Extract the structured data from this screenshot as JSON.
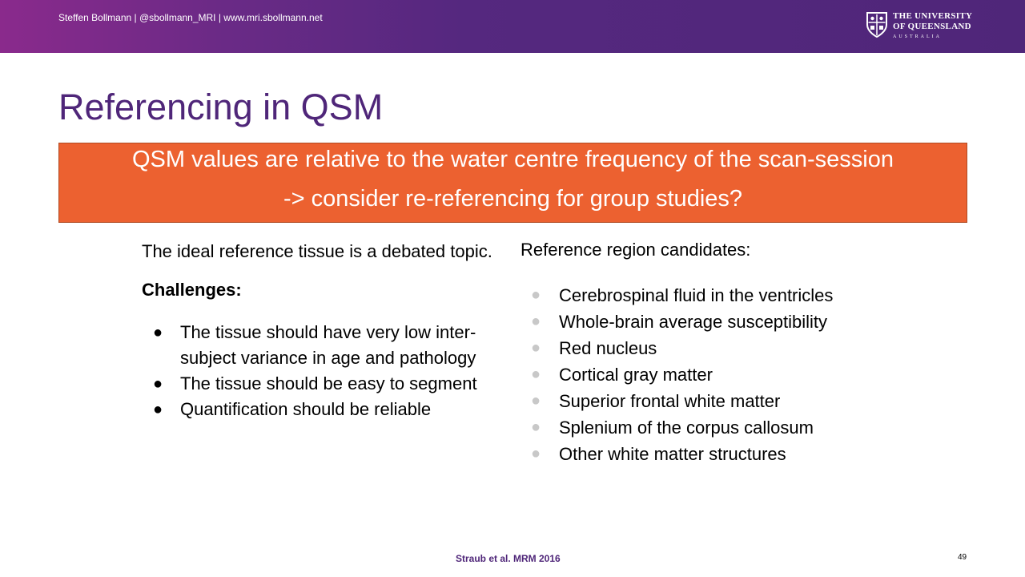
{
  "header": {
    "author": "Steffen Bollmann | @sbollmann_MRI  | www.mri.sbollmann.net",
    "logo": {
      "line1": "THE UNIVERSITY",
      "line2": "OF QUEENSLAND",
      "line3": "AUSTRALIA"
    }
  },
  "title": "Referencing in QSM",
  "banner": {
    "line1": "QSM values are relative to the water centre frequency of the scan-session",
    "line2": "-> consider re-referencing for group studies?"
  },
  "left": {
    "intro": "The ideal reference tissue is a debated topic.",
    "challenges_heading": "Challenges:",
    "bullet_symbol": "●",
    "challenges": [
      "The tissue should have very low inter-subject variance in age and pathology",
      "The tissue should be easy to segment",
      "Quantification should be reliable"
    ]
  },
  "right": {
    "heading": "Reference region candidates:",
    "bullet_symbol": "●",
    "candidates": [
      "Cerebrospinal fluid in the ventricles",
      "Whole-brain average susceptibility",
      "Red nucleus",
      "Cortical gray matter",
      "Superior frontal white matter",
      "Splenium of the corpus callosum",
      "Other white matter structures"
    ]
  },
  "footer": {
    "citation": "Straub et al. MRM 2016",
    "page": "49"
  },
  "colors": {
    "accent_purple": "#4f2679",
    "banner_orange": "#ec6130",
    "bullet_gray": "#c8c8c8"
  }
}
